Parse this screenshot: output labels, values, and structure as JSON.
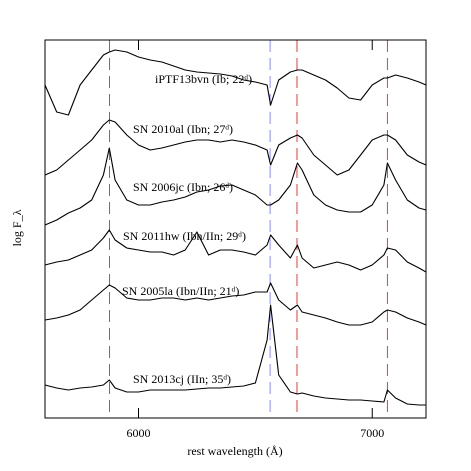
{
  "chart_data": {
    "type": "line",
    "xlabel": "rest wavelength (Å)",
    "ylabel": "log F_λ",
    "xlim": [
      5600,
      7230
    ],
    "ylim": [
      0,
      18.9
    ],
    "xticks": [
      6000,
      7000
    ],
    "vlines": [
      {
        "x": 5876,
        "color": "#e0413a"
      },
      {
        "x": 6563,
        "color": "#8a8aff"
      },
      {
        "x": 6678,
        "color": "#e0413a"
      },
      {
        "x": 7065,
        "color": "#e0413a"
      }
    ],
    "x": [
      5600,
      5650,
      5700,
      5750,
      5800,
      5850,
      5875,
      5900,
      5950,
      6000,
      6050,
      6100,
      6150,
      6200,
      6250,
      6300,
      6350,
      6400,
      6450,
      6500,
      6550,
      6565,
      6600,
      6650,
      6680,
      6700,
      6750,
      6800,
      6850,
      6900,
      6950,
      7000,
      7050,
      7065,
      7100,
      7150,
      7200,
      7230
    ],
    "series": [
      {
        "name": "iPTF13bvn (Ib; 22ᵈ)",
        "color": "#000000",
        "values": [
          16.65,
          15.3,
          15.15,
          16.65,
          17.4,
          18.15,
          18.3,
          18.4,
          18.3,
          18.05,
          17.9,
          17.8,
          17.6,
          17.4,
          17.3,
          17.25,
          17.2,
          17.1,
          16.9,
          16.8,
          16.65,
          15.65,
          16.9,
          17.3,
          17.4,
          17.4,
          17.15,
          16.9,
          16.5,
          16.0,
          15.9,
          16.65,
          17.0,
          17.0,
          17.15,
          17.0,
          16.8,
          16.65
        ]
      },
      {
        "name": "SN 2010al (Ibn; 27ᵈ)",
        "color": "#000000",
        "values": [
          12.15,
          12.4,
          12.9,
          13.4,
          13.9,
          14.65,
          14.9,
          14.8,
          14.15,
          13.65,
          13.4,
          13.5,
          13.65,
          13.8,
          13.9,
          13.9,
          13.8,
          13.9,
          13.8,
          13.65,
          13.4,
          12.65,
          13.65,
          14.0,
          14.15,
          14.0,
          13.15,
          12.65,
          12.15,
          12.4,
          13.15,
          13.9,
          14.15,
          14.15,
          13.9,
          13.15,
          12.8,
          12.65
        ]
      },
      {
        "name": "SN 2006jc (Ibn; 26ᵈ)",
        "color": "#000000",
        "values": [
          9.65,
          9.9,
          10.25,
          10.5,
          10.9,
          12.15,
          13.5,
          11.9,
          10.9,
          10.65,
          10.65,
          10.8,
          10.9,
          11.05,
          11.3,
          11.4,
          11.6,
          11.65,
          11.4,
          11.15,
          10.65,
          10.65,
          10.9,
          11.65,
          12.75,
          12.4,
          11.15,
          10.65,
          10.4,
          10.3,
          10.3,
          10.65,
          11.65,
          12.75,
          11.9,
          10.9,
          10.5,
          10.4
        ]
      },
      {
        "name": "SN 2011hw (Ibn/IIn; 29ᵈ)",
        "color": "#000000",
        "values": [
          7.65,
          7.8,
          7.9,
          8.15,
          8.4,
          9.0,
          9.4,
          8.9,
          8.5,
          8.4,
          8.3,
          8.3,
          8.15,
          8.4,
          9.3,
          8.15,
          8.4,
          8.4,
          8.3,
          8.15,
          8.65,
          9.15,
          8.65,
          8.0,
          8.65,
          8.0,
          7.5,
          7.65,
          7.8,
          7.65,
          7.4,
          7.65,
          8.15,
          8.5,
          8.4,
          7.8,
          7.5,
          7.3
        ]
      },
      {
        "name": "SN 2005la (Ibn/IIn; 21ᵈ)",
        "color": "#000000",
        "values": [
          4.9,
          5.0,
          5.15,
          5.4,
          5.9,
          6.4,
          6.65,
          6.5,
          6.0,
          5.9,
          5.9,
          6.0,
          6.0,
          5.9,
          6.0,
          5.9,
          6.0,
          6.1,
          6.15,
          6.3,
          6.3,
          6.75,
          5.9,
          5.4,
          5.65,
          5.3,
          5.15,
          5.0,
          4.8,
          4.65,
          4.65,
          4.8,
          5.3,
          5.4,
          5.3,
          5.0,
          4.8,
          4.65
        ]
      },
      {
        "name": "SN 2013cj (IIn; 35ᵈ)",
        "color": "#000000",
        "values": [
          1.65,
          1.5,
          1.4,
          1.5,
          1.55,
          1.65,
          1.9,
          1.5,
          1.3,
          1.3,
          1.4,
          1.4,
          1.4,
          1.4,
          1.45,
          1.5,
          1.5,
          1.55,
          1.6,
          1.75,
          3.9,
          5.65,
          2.15,
          1.3,
          1.2,
          1.25,
          1.1,
          1.0,
          0.95,
          0.9,
          0.9,
          0.85,
          0.8,
          1.4,
          1.0,
          0.7,
          0.65,
          0.65
        ]
      }
    ]
  }
}
